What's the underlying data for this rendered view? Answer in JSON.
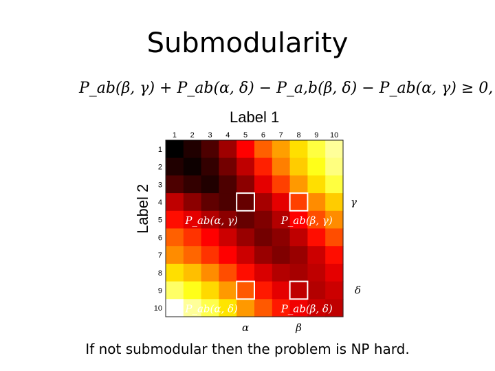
{
  "slide": {
    "title": "Submodularity",
    "formula": "P_ab(β, γ) + P_ab(α, δ) − P_a,b(β, δ) − P_ab(α, γ) ≥ 0,",
    "caption": "If not submodular then the problem is NP hard."
  },
  "chart_data": {
    "type": "heatmap",
    "xlabel": "Label 1",
    "ylabel": "Label 2",
    "x_ticks": [
      "1",
      "2",
      "3",
      "4",
      "5",
      "6",
      "7",
      "8",
      "9",
      "10"
    ],
    "y_ticks": [
      "1",
      "2",
      "3",
      "4",
      "5",
      "6",
      "7",
      "8",
      "9",
      "10"
    ],
    "values": [
      [
        0.0,
        0.05,
        0.12,
        0.25,
        0.4,
        0.55,
        0.65,
        0.75,
        0.85,
        0.92
      ],
      [
        0.05,
        0.02,
        0.08,
        0.18,
        0.3,
        0.45,
        0.6,
        0.72,
        0.82,
        0.9
      ],
      [
        0.12,
        0.08,
        0.05,
        0.12,
        0.22,
        0.36,
        0.5,
        0.64,
        0.75,
        0.85
      ],
      [
        0.3,
        0.22,
        0.15,
        0.12,
        0.16,
        0.26,
        0.36,
        0.5,
        0.62,
        0.72
      ],
      [
        0.42,
        0.36,
        0.28,
        0.22,
        0.16,
        0.2,
        0.28,
        0.4,
        0.52,
        0.62
      ],
      [
        0.55,
        0.48,
        0.4,
        0.32,
        0.24,
        0.18,
        0.22,
        0.3,
        0.42,
        0.52
      ],
      [
        0.62,
        0.56,
        0.48,
        0.4,
        0.32,
        0.24,
        0.2,
        0.24,
        0.32,
        0.42
      ],
      [
        0.75,
        0.7,
        0.62,
        0.52,
        0.42,
        0.34,
        0.28,
        0.26,
        0.3,
        0.36
      ],
      [
        0.88,
        0.82,
        0.74,
        0.64,
        0.54,
        0.44,
        0.36,
        0.3,
        0.28,
        0.32
      ],
      [
        1.0,
        0.92,
        0.86,
        0.76,
        0.64,
        0.54,
        0.44,
        0.38,
        0.32,
        0.3
      ]
    ],
    "highlight_cells": [
      {
        "row": 3,
        "col": 4,
        "label": "P_ab(α, γ)"
      },
      {
        "row": 3,
        "col": 7,
        "label": "P_ab(β, γ)"
      },
      {
        "row": 8,
        "col": 4,
        "label": "P_ab(α, δ)"
      },
      {
        "row": 8,
        "col": 7,
        "label": "P_ab(β, δ)"
      }
    ],
    "col_markers": [
      {
        "col": 4,
        "label": "α"
      },
      {
        "col": 7,
        "label": "β"
      }
    ],
    "row_markers": [
      {
        "row": 3,
        "label": "γ"
      },
      {
        "row": 8,
        "label": "δ"
      }
    ],
    "colormap": "hot"
  }
}
